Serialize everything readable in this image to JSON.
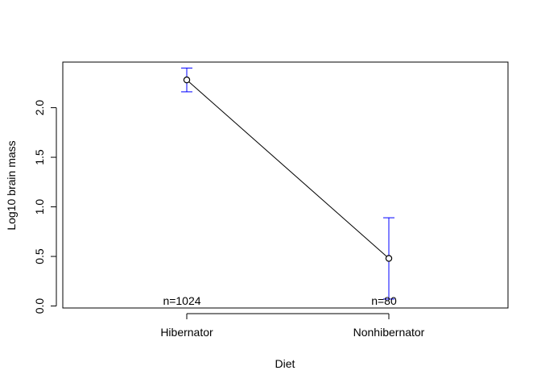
{
  "chart_data": {
    "type": "line",
    "title": "",
    "xlabel": "Diet",
    "ylabel": "Log10 brain mass",
    "categories": [
      "Hibernator",
      "Nonhibernator"
    ],
    "series": [
      {
        "values": [
          2.28,
          0.48
        ],
        "error_bars": [
          [
            2.16,
            2.4
          ],
          [
            0.07,
            0.89
          ]
        ],
        "n_labels": [
          "n=1024",
          "n=80"
        ]
      }
    ],
    "yticks": [
      "0.0",
      "0.5",
      "1.0",
      "1.5",
      "2.0"
    ],
    "ylim": [
      -0.02,
      2.46
    ],
    "grid": false,
    "colors": {
      "line": "#000000",
      "error_bar": "#0000ff",
      "axis": "#000000"
    }
  }
}
